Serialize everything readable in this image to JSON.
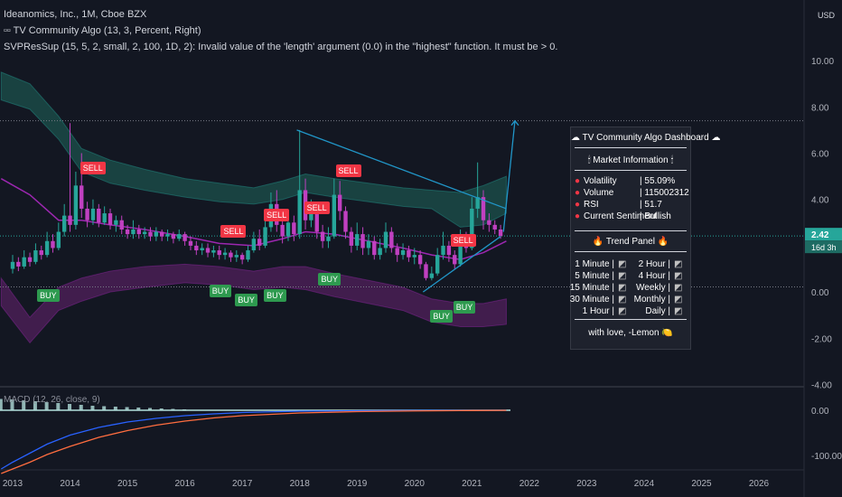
{
  "header": {
    "symbol_line": "Ideanomics, Inc., 1M, Cboe BZX",
    "indicator1": "TV Community Algo (13, 3, Percent, Right)",
    "indicator2": "SVPResSup (15, 5, 2, small, 2, 100, 1D, 2): Invalid value of the 'length' argument (0.0) in the \"highest\" function. It must be > 0.",
    "macd_label": "MACD (12, 26, close, 9)"
  },
  "price_axis": {
    "currency": "USD",
    "ticks": [
      "10.00",
      "8.00",
      "6.00",
      "4.00",
      "2.00",
      "0.00",
      "-2.00",
      "-4.00"
    ],
    "last_price": "2.42",
    "countdown": "16d 3h"
  },
  "macd_axis": {
    "ticks": [
      "0.00",
      "-100.00"
    ]
  },
  "time_axis": {
    "ticks": [
      "2013",
      "2014",
      "2015",
      "2016",
      "2017",
      "2018",
      "2019",
      "2020",
      "2021",
      "2022",
      "2023",
      "2024",
      "2025",
      "2026"
    ]
  },
  "signals": {
    "sell_label": "SELL",
    "buy_label": "BUY"
  },
  "dashboard": {
    "title": "☁ TV Community Algo Dashboard ☁",
    "market_header": "🕯 Market Information 🕯",
    "metrics": [
      {
        "label": "Volatility",
        "value": "| 55.09%"
      },
      {
        "label": "Volume",
        "value": "| 115002312"
      },
      {
        "label": "RSI",
        "value": "| 51.7"
      },
      {
        "label": "Current Sentiment",
        "value": "| Bullish"
      }
    ],
    "trend_header": "🔥 Trend Panel 🔥",
    "trends_left": [
      {
        "tf": "1 Minute",
        "sep": "|"
      },
      {
        "tf": "5 Minute",
        "sep": "|"
      },
      {
        "tf": "15 Minute",
        "sep": "|"
      },
      {
        "tf": "30 Minute",
        "sep": "|"
      },
      {
        "tf": "1 Hour",
        "sep": "|"
      }
    ],
    "trends_right": [
      {
        "tf": "2 Hour",
        "sep": "|"
      },
      {
        "tf": "4 Hour",
        "sep": "|"
      },
      {
        "tf": "Weekly",
        "sep": "|"
      },
      {
        "tf": "Monthly",
        "sep": "|"
      },
      {
        "tf": "Daily",
        "sep": "|"
      }
    ],
    "footer": "with love, -Lemon 🍋"
  },
  "colors": {
    "background": "#131722",
    "up": "#26a69a",
    "down": "#c040c0",
    "band_upper": "#1b4a47",
    "band_lower": "#4a1f55",
    "trendline": "#2196c8",
    "macd_line": "#2962ff",
    "signal_line": "#ff6d3f"
  },
  "chart_data": {
    "type": "candlestick",
    "title": "Ideanomics, Inc., 1M, Cboe BZX",
    "ylim": [
      -4,
      11
    ],
    "xlim": [
      2012.8,
      2026.6
    ],
    "candles": [
      {
        "t": 2013.0,
        "o": 1.0,
        "c": 1.3,
        "h": 1.6,
        "l": 0.8
      },
      {
        "t": 2013.1,
        "o": 1.3,
        "c": 1.1,
        "h": 1.5,
        "l": 0.9
      },
      {
        "t": 2013.2,
        "o": 1.1,
        "c": 1.5,
        "h": 1.8,
        "l": 1.0
      },
      {
        "t": 2013.3,
        "o": 1.5,
        "c": 1.3,
        "h": 1.7,
        "l": 1.1
      },
      {
        "t": 2013.4,
        "o": 1.3,
        "c": 1.8,
        "h": 2.1,
        "l": 1.2
      },
      {
        "t": 2013.5,
        "o": 1.8,
        "c": 1.6,
        "h": 2.0,
        "l": 1.4
      },
      {
        "t": 2013.6,
        "o": 1.6,
        "c": 2.2,
        "h": 2.6,
        "l": 1.5
      },
      {
        "t": 2013.7,
        "o": 2.2,
        "c": 1.9,
        "h": 2.5,
        "l": 1.7
      },
      {
        "t": 2013.8,
        "o": 1.9,
        "c": 2.6,
        "h": 3.0,
        "l": 1.8
      },
      {
        "t": 2013.9,
        "o": 2.6,
        "c": 3.3,
        "h": 3.8,
        "l": 2.4
      },
      {
        "t": 2014.0,
        "o": 3.3,
        "c": 2.9,
        "h": 7.3,
        "l": 2.6
      },
      {
        "t": 2014.1,
        "o": 2.9,
        "c": 4.6,
        "h": 5.2,
        "l": 2.7
      },
      {
        "t": 2014.2,
        "o": 4.6,
        "c": 3.6,
        "h": 6.0,
        "l": 3.2
      },
      {
        "t": 2014.3,
        "o": 3.6,
        "c": 3.1,
        "h": 3.9,
        "l": 2.8
      },
      {
        "t": 2014.4,
        "o": 3.1,
        "c": 3.6,
        "h": 4.0,
        "l": 2.9
      },
      {
        "t": 2014.5,
        "o": 3.6,
        "c": 3.0,
        "h": 3.8,
        "l": 2.8
      },
      {
        "t": 2014.6,
        "o": 3.0,
        "c": 3.4,
        "h": 3.7,
        "l": 2.9
      },
      {
        "t": 2014.7,
        "o": 3.4,
        "c": 2.9,
        "h": 3.6,
        "l": 2.7
      },
      {
        "t": 2014.8,
        "o": 2.9,
        "c": 3.1,
        "h": 3.3,
        "l": 2.6
      },
      {
        "t": 2014.9,
        "o": 3.1,
        "c": 2.7,
        "h": 3.3,
        "l": 2.5
      },
      {
        "t": 2015.0,
        "o": 2.7,
        "c": 2.5,
        "h": 2.9,
        "l": 2.3
      },
      {
        "t": 2015.1,
        "o": 2.5,
        "c": 2.7,
        "h": 3.1,
        "l": 2.3
      },
      {
        "t": 2015.2,
        "o": 2.7,
        "c": 2.5,
        "h": 2.9,
        "l": 2.3
      },
      {
        "t": 2015.3,
        "o": 2.5,
        "c": 2.6,
        "h": 2.8,
        "l": 2.3
      },
      {
        "t": 2015.4,
        "o": 2.6,
        "c": 2.4,
        "h": 2.8,
        "l": 2.2
      },
      {
        "t": 2015.5,
        "o": 2.4,
        "c": 2.6,
        "h": 2.8,
        "l": 2.2
      },
      {
        "t": 2015.6,
        "o": 2.6,
        "c": 2.4,
        "h": 2.7,
        "l": 2.2
      },
      {
        "t": 2015.7,
        "o": 2.4,
        "c": 2.5,
        "h": 2.7,
        "l": 2.2
      },
      {
        "t": 2015.8,
        "o": 2.5,
        "c": 2.3,
        "h": 2.6,
        "l": 2.1
      },
      {
        "t": 2015.9,
        "o": 2.3,
        "c": 2.5,
        "h": 2.7,
        "l": 2.2
      },
      {
        "t": 2016.0,
        "o": 2.5,
        "c": 2.2,
        "h": 2.6,
        "l": 2.0
      },
      {
        "t": 2016.1,
        "o": 2.2,
        "c": 2.0,
        "h": 2.4,
        "l": 1.8
      },
      {
        "t": 2016.2,
        "o": 2.0,
        "c": 1.8,
        "h": 2.2,
        "l": 1.6
      },
      {
        "t": 2016.3,
        "o": 1.8,
        "c": 1.9,
        "h": 2.1,
        "l": 1.6
      },
      {
        "t": 2016.4,
        "o": 1.9,
        "c": 1.7,
        "h": 2.1,
        "l": 1.5
      },
      {
        "t": 2016.5,
        "o": 1.7,
        "c": 1.8,
        "h": 2.0,
        "l": 1.5
      },
      {
        "t": 2016.6,
        "o": 1.8,
        "c": 1.6,
        "h": 2.0,
        "l": 1.4
      },
      {
        "t": 2016.7,
        "o": 1.6,
        "c": 1.7,
        "h": 1.9,
        "l": 1.4
      },
      {
        "t": 2016.8,
        "o": 1.7,
        "c": 1.5,
        "h": 1.8,
        "l": 1.3
      },
      {
        "t": 2016.9,
        "o": 1.5,
        "c": 1.6,
        "h": 1.8,
        "l": 1.3
      },
      {
        "t": 2017.0,
        "o": 1.6,
        "c": 1.4,
        "h": 1.7,
        "l": 1.2
      },
      {
        "t": 2017.1,
        "o": 1.4,
        "c": 1.8,
        "h": 2.0,
        "l": 1.3
      },
      {
        "t": 2017.2,
        "o": 1.8,
        "c": 2.3,
        "h": 2.6,
        "l": 1.7
      },
      {
        "t": 2017.3,
        "o": 2.3,
        "c": 2.0,
        "h": 2.7,
        "l": 1.8
      },
      {
        "t": 2017.4,
        "o": 2.0,
        "c": 2.8,
        "h": 3.2,
        "l": 1.9
      },
      {
        "t": 2017.5,
        "o": 2.8,
        "c": 3.8,
        "h": 4.3,
        "l": 2.6
      },
      {
        "t": 2017.6,
        "o": 3.8,
        "c": 2.9,
        "h": 4.4,
        "l": 2.6
      },
      {
        "t": 2017.7,
        "o": 2.9,
        "c": 2.4,
        "h": 3.2,
        "l": 2.1
      },
      {
        "t": 2017.8,
        "o": 2.4,
        "c": 3.0,
        "h": 3.4,
        "l": 2.2
      },
      {
        "t": 2017.9,
        "o": 3.0,
        "c": 2.5,
        "h": 3.3,
        "l": 2.2
      },
      {
        "t": 2018.0,
        "o": 2.5,
        "c": 4.4,
        "h": 7.0,
        "l": 2.3
      },
      {
        "t": 2018.1,
        "o": 4.4,
        "c": 3.1,
        "h": 4.9,
        "l": 2.7
      },
      {
        "t": 2018.2,
        "o": 3.1,
        "c": 3.5,
        "h": 4.0,
        "l": 2.8
      },
      {
        "t": 2018.3,
        "o": 3.5,
        "c": 2.6,
        "h": 3.7,
        "l": 2.3
      },
      {
        "t": 2018.4,
        "o": 2.6,
        "c": 2.2,
        "h": 2.9,
        "l": 1.9
      },
      {
        "t": 2018.5,
        "o": 2.2,
        "c": 2.4,
        "h": 2.8,
        "l": 1.9
      },
      {
        "t": 2018.6,
        "o": 2.4,
        "c": 4.2,
        "h": 4.9,
        "l": 2.3
      },
      {
        "t": 2018.7,
        "o": 4.2,
        "c": 3.5,
        "h": 4.8,
        "l": 3.1
      },
      {
        "t": 2018.8,
        "o": 3.5,
        "c": 2.6,
        "h": 3.7,
        "l": 2.3
      },
      {
        "t": 2018.9,
        "o": 2.6,
        "c": 2.0,
        "h": 2.8,
        "l": 1.7
      },
      {
        "t": 2019.0,
        "o": 2.0,
        "c": 2.5,
        "h": 3.0,
        "l": 1.8
      },
      {
        "t": 2019.1,
        "o": 2.5,
        "c": 1.9,
        "h": 2.8,
        "l": 1.6
      },
      {
        "t": 2019.2,
        "o": 1.9,
        "c": 2.2,
        "h": 2.5,
        "l": 1.6
      },
      {
        "t": 2019.3,
        "o": 2.2,
        "c": 1.6,
        "h": 2.4,
        "l": 1.4
      },
      {
        "t": 2019.4,
        "o": 1.6,
        "c": 1.9,
        "h": 2.3,
        "l": 1.4
      },
      {
        "t": 2019.5,
        "o": 1.9,
        "c": 2.6,
        "h": 3.0,
        "l": 1.7
      },
      {
        "t": 2019.6,
        "o": 2.6,
        "c": 1.9,
        "h": 2.8,
        "l": 1.7
      },
      {
        "t": 2019.7,
        "o": 1.9,
        "c": 1.6,
        "h": 2.1,
        "l": 1.3
      },
      {
        "t": 2019.8,
        "o": 1.6,
        "c": 1.8,
        "h": 2.1,
        "l": 1.4
      },
      {
        "t": 2019.9,
        "o": 1.8,
        "c": 1.5,
        "h": 2.0,
        "l": 1.3
      },
      {
        "t": 2020.0,
        "o": 1.5,
        "c": 1.6,
        "h": 1.9,
        "l": 1.2
      },
      {
        "t": 2020.1,
        "o": 1.6,
        "c": 1.2,
        "h": 1.8,
        "l": 1.0
      },
      {
        "t": 2020.2,
        "o": 1.2,
        "c": 0.6,
        "h": 1.3,
        "l": 0.5
      },
      {
        "t": 2020.3,
        "o": 0.6,
        "c": 0.8,
        "h": 1.1,
        "l": 0.5
      },
      {
        "t": 2020.4,
        "o": 0.8,
        "c": 1.6,
        "h": 1.9,
        "l": 0.7
      },
      {
        "t": 2020.5,
        "o": 1.6,
        "c": 2.0,
        "h": 2.6,
        "l": 1.4
      },
      {
        "t": 2020.6,
        "o": 2.0,
        "c": 1.6,
        "h": 2.2,
        "l": 1.3
      },
      {
        "t": 2020.7,
        "o": 1.6,
        "c": 1.2,
        "h": 1.8,
        "l": 1.0
      },
      {
        "t": 2020.8,
        "o": 1.2,
        "c": 2.3,
        "h": 2.7,
        "l": 1.1
      },
      {
        "t": 2020.9,
        "o": 2.3,
        "c": 1.9,
        "h": 2.6,
        "l": 1.7
      },
      {
        "t": 2021.0,
        "o": 1.9,
        "c": 3.6,
        "h": 4.1,
        "l": 1.8
      },
      {
        "t": 2021.1,
        "o": 3.6,
        "c": 4.1,
        "h": 5.6,
        "l": 3.2
      },
      {
        "t": 2021.2,
        "o": 4.1,
        "c": 3.1,
        "h": 4.4,
        "l": 2.7
      },
      {
        "t": 2021.3,
        "o": 3.1,
        "c": 2.9,
        "h": 3.4,
        "l": 2.6
      },
      {
        "t": 2021.4,
        "o": 2.9,
        "c": 2.7,
        "h": 3.1,
        "l": 2.5
      },
      {
        "t": 2021.5,
        "o": 2.7,
        "c": 2.42,
        "h": 2.9,
        "l": 2.3
      }
    ],
    "upper_band": {
      "x": [
        2012.8,
        2013.3,
        2013.8,
        2014.2,
        2014.7,
        2015.3,
        2016.0,
        2016.6,
        2017.2,
        2017.7,
        2018.1,
        2018.6,
        2019.2,
        2019.8,
        2020.3,
        2020.8,
        2021.2,
        2021.6
      ],
      "top": [
        9.5,
        9.0,
        7.6,
        6.2,
        5.7,
        5.3,
        4.9,
        4.7,
        4.5,
        4.8,
        5.1,
        4.9,
        4.7,
        4.5,
        4.4,
        4.3,
        4.6,
        5.0
      ],
      "bottom": [
        8.3,
        7.9,
        6.6,
        5.2,
        4.7,
        4.4,
        4.1,
        3.9,
        3.8,
        4.0,
        4.3,
        4.1,
        3.9,
        3.7,
        3.6,
        2.8,
        2.9,
        3.4
      ]
    },
    "lower_band": {
      "x": [
        2012.8,
        2013.3,
        2013.8,
        2014.2,
        2014.7,
        2015.3,
        2016.0,
        2016.6,
        2017.2,
        2017.7,
        2018.1,
        2018.6,
        2019.2,
        2019.8,
        2020.3,
        2020.8,
        2021.2,
        2021.6
      ],
      "top": [
        0.6,
        -1.1,
        0.2,
        0.6,
        0.9,
        1.1,
        1.2,
        1.1,
        0.9,
        1.1,
        1.1,
        0.8,
        0.5,
        0.2,
        -0.3,
        -0.5,
        -0.5,
        -0.3
      ],
      "bottom": [
        -0.6,
        -2.2,
        -0.8,
        -0.4,
        0.0,
        0.2,
        0.4,
        0.3,
        0.1,
        0.2,
        0.1,
        -0.2,
        -0.5,
        -0.8,
        -1.3,
        -1.5,
        -1.5,
        -1.4
      ]
    },
    "ma_line": {
      "x": [
        2012.8,
        2013.3,
        2013.8,
        2014.2,
        2014.7,
        2015.3,
        2016.0,
        2016.6,
        2017.2,
        2017.7,
        2018.1,
        2018.6,
        2019.2,
        2019.8,
        2020.3,
        2020.8,
        2021.2,
        2021.6
      ],
      "y": [
        4.9,
        4.2,
        3.1,
        3.1,
        2.9,
        2.7,
        2.4,
        2.1,
        2.0,
        2.3,
        2.6,
        2.5,
        2.2,
        1.9,
        1.6,
        1.4,
        1.7,
        2.2
      ]
    },
    "trend_lines": [
      {
        "x": [
          2017.95,
          2021.6
        ],
        "y": [
          7.0,
          3.6
        ]
      },
      {
        "x": [
          2020.15,
          2021.5
        ],
        "y": [
          0.0,
          2.4
        ]
      },
      {
        "x": [
          2021.55,
          2021.75
        ],
        "y": [
          2.6,
          7.4
        ]
      }
    ],
    "horizontal_levels": [
      7.4,
      2.42,
      0.22
    ],
    "sell_signals": [
      {
        "t": 2014.35,
        "y": 5.3
      },
      {
        "t": 2016.8,
        "y": 2.6
      },
      {
        "t": 2017.55,
        "y": 3.3
      },
      {
        "t": 2018.25,
        "y": 3.6
      },
      {
        "t": 2018.8,
        "y": 5.2
      },
      {
        "t": 2020.8,
        "y": 2.2
      }
    ],
    "buy_signals": [
      {
        "t": 2013.6,
        "y": -0.2
      },
      {
        "t": 2016.6,
        "y": 0.0
      },
      {
        "t": 2017.05,
        "y": -0.4
      },
      {
        "t": 2017.55,
        "y": -0.2
      },
      {
        "t": 2018.5,
        "y": 0.5
      },
      {
        "t": 2020.45,
        "y": -1.1
      },
      {
        "t": 2020.85,
        "y": -0.7
      }
    ],
    "macd": {
      "ylim": [
        -140,
        30
      ],
      "x": [
        2012.8,
        2013.0,
        2013.3,
        2013.6,
        2014.0,
        2014.5,
        2015.0,
        2015.5,
        2016.0,
        2016.5,
        2017.0,
        2018.0,
        2019.0,
        2020.0,
        2021.0,
        2021.6
      ],
      "macd": [
        -130,
        -115,
        -95,
        -75,
        -55,
        -38,
        -26,
        -18,
        -12,
        -8,
        -5,
        -2,
        -1,
        -0.5,
        -0.2,
        0
      ],
      "signal": [
        -140,
        -130,
        -115,
        -98,
        -80,
        -60,
        -45,
        -33,
        -24,
        -17,
        -12,
        -6,
        -3,
        -1.5,
        -0.6,
        -0.2
      ],
      "hist_x": [
        2012.8,
        2013.0,
        2013.2,
        2013.4,
        2013.6,
        2013.8,
        2014.0,
        2014.2,
        2014.4,
        2014.6,
        2014.8,
        2015.0,
        2015.2,
        2015.4,
        2015.6,
        2015.8,
        2016.0
      ],
      "hist": [
        25,
        24,
        22,
        20,
        18,
        16,
        14,
        12,
        10,
        9,
        8,
        7,
        6,
        5,
        4,
        3,
        2
      ]
    }
  }
}
